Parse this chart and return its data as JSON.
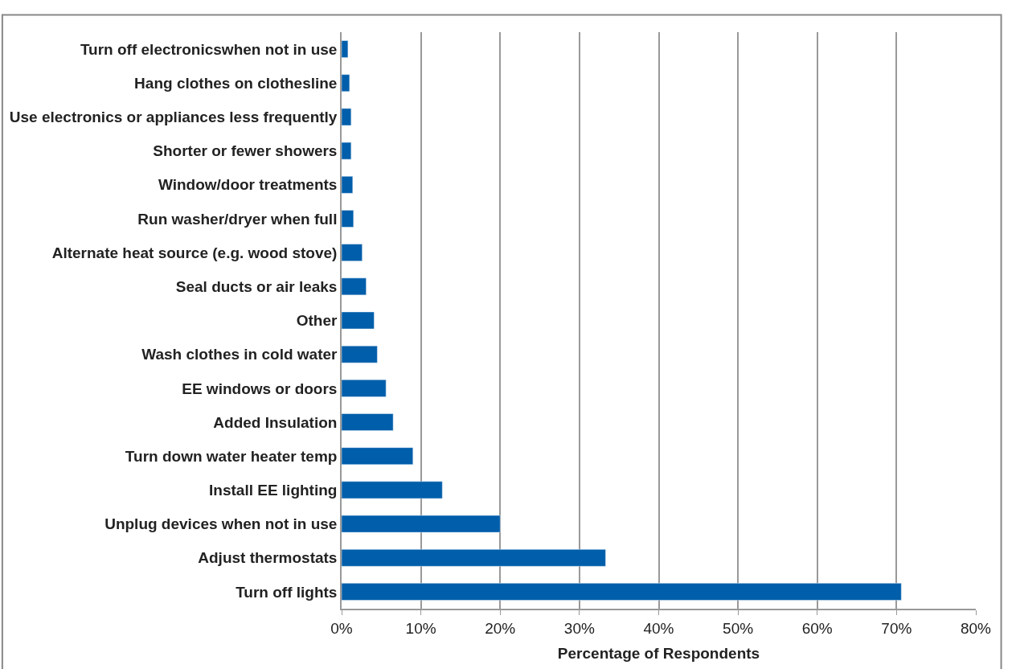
{
  "chart_data": {
    "type": "bar",
    "orientation": "horizontal",
    "xlabel": "Percentage of Respondents",
    "categories": [
      "Turn off electronicswhen not in use",
      "Hang clothes on clothesline",
      "Use electronics or appliances less frequently",
      "Shorter or fewer showers",
      "Window/door treatments",
      "Run washer/dryer when full",
      "Alternate heat source (e.g. wood stove)",
      "Seal ducts or air leaks",
      "Other",
      "Wash clothes in cold water",
      "EE windows or doors",
      "Added Insulation",
      "Turn down water heater temp",
      "Install EE lighting",
      "Unplug devices when not in use",
      "Adjust thermostats",
      "Turn off lights"
    ],
    "values": [
      0.8,
      1.0,
      1.2,
      1.2,
      1.4,
      1.5,
      2.6,
      3.1,
      4.1,
      4.5,
      5.6,
      6.5,
      9.0,
      12.7,
      20.0,
      33.3,
      70.6
    ],
    "color": "#005eaa",
    "xlim": [
      0,
      80
    ],
    "xticks": [
      {
        "value": 0,
        "label": "0%"
      },
      {
        "value": 10,
        "label": "10%"
      },
      {
        "value": 20,
        "label": "20%"
      },
      {
        "value": 30,
        "label": "30%"
      },
      {
        "value": 40,
        "label": "40%"
      },
      {
        "value": 50,
        "label": "50%"
      },
      {
        "value": 60,
        "label": "60%"
      },
      {
        "value": 70,
        "label": "70%"
      },
      {
        "value": 80,
        "label": "80%"
      }
    ],
    "grid": "x"
  }
}
